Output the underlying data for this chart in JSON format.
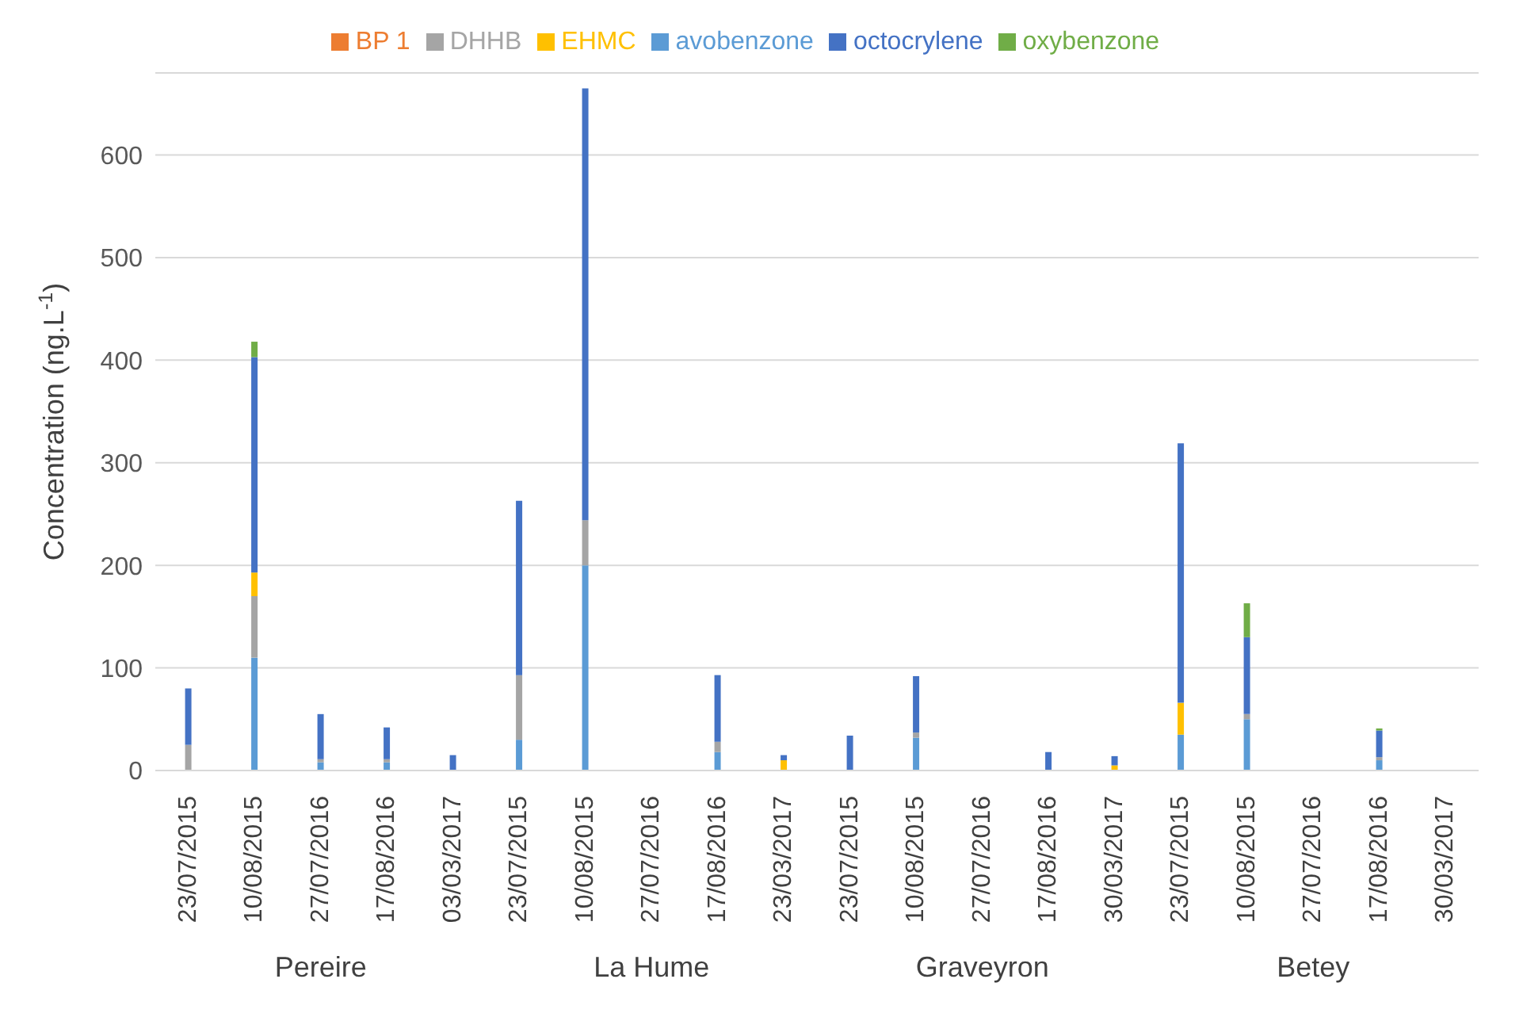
{
  "chart_data": {
    "type": "bar",
    "stacked": true,
    "ylabel": "Concentration (ng.L$^{-1}$)",
    "categories": [
      "23/07/2015",
      "10/08/2015",
      "27/07/2016",
      "17/08/2016",
      "03/03/2017",
      "23/07/2015",
      "10/08/2015",
      "27/07/2016",
      "17/08/2016",
      "23/03/2017",
      "23/07/2015",
      "10/08/2015",
      "27/07/2016",
      "17/08/2016",
      "30/03/2017",
      "23/07/2015",
      "10/08/2015",
      "27/07/2016",
      "17/08/2016",
      "30/03/2017"
    ],
    "annotations": [
      "Pereire",
      "La Hume",
      "Graveyron",
      "Betey"
    ],
    "series": [
      {
        "name": "avobenzone",
        "color": "#5b9bd5",
        "values": [
          null,
          110,
          8,
          8,
          null,
          30,
          200,
          null,
          18,
          null,
          null,
          32,
          null,
          null,
          null,
          35,
          50,
          null,
          10,
          null
        ]
      },
      {
        "name": "BP 1",
        "color": "#ed7d31",
        "values": [
          null,
          null,
          null,
          null,
          null,
          null,
          null,
          null,
          null,
          null,
          null,
          null,
          null,
          null,
          null,
          null,
          null,
          null,
          null,
          null
        ]
      },
      {
        "name": "DHHB",
        "color": "#a5a5a5",
        "values": [
          25,
          60,
          3,
          3,
          null,
          63,
          44,
          null,
          10,
          null,
          null,
          5,
          null,
          null,
          null,
          null,
          5,
          null,
          3,
          null
        ]
      },
      {
        "name": "EHMC",
        "color": "#ffc000",
        "values": [
          null,
          23,
          null,
          null,
          null,
          null,
          null,
          null,
          null,
          10,
          null,
          null,
          null,
          null,
          5,
          31,
          null,
          null,
          null,
          null
        ]
      },
      {
        "name": "octocrylene",
        "color": "#4472c4",
        "values": [
          55,
          210,
          44,
          31,
          15,
          170,
          421,
          null,
          65,
          5,
          34,
          55,
          null,
          18,
          9,
          253,
          75,
          null,
          26,
          null
        ]
      },
      {
        "name": "oxybenzone",
        "color": "#70ad47",
        "values": [
          null,
          15,
          null,
          null,
          null,
          null,
          null,
          null,
          null,
          null,
          null,
          null,
          null,
          null,
          null,
          null,
          33,
          null,
          2,
          null
        ]
      }
    ],
    "ylim": [
      0,
      680
    ],
    "yticks": [
      0,
      100,
      200,
      300,
      400,
      500,
      600
    ],
    "grid": "y",
    "legend": "top"
  }
}
